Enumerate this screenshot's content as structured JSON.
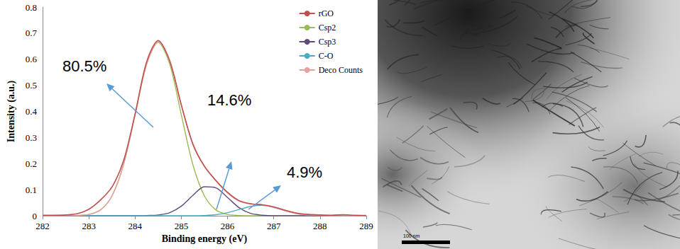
{
  "chart_data": {
    "type": "line",
    "x_label": "Binding energy (eV)",
    "y_label": "Intensity (a.u.)",
    "x": [
      282,
      282.25,
      282.5,
      282.75,
      283,
      283.25,
      283.5,
      283.75,
      284,
      284.25,
      284.5,
      284.75,
      285,
      285.25,
      285.5,
      285.75,
      286,
      286.25,
      286.5,
      286.75,
      287,
      287.25,
      287.5,
      287.75,
      288,
      288.25,
      288.5,
      288.75,
      289
    ],
    "series": [
      {
        "name": "rGO",
        "color": "#c0504d",
        "values": [
          0.002,
          0.002,
          0.003,
          0.008,
          0.025,
          0.06,
          0.11,
          0.21,
          0.39,
          0.59,
          0.672,
          0.594,
          0.425,
          0.275,
          0.19,
          0.135,
          0.09,
          0.058,
          0.046,
          0.042,
          0.034,
          0.021,
          0.01,
          0.005,
          0.003,
          0.002,
          0.004,
          0.002,
          0.001
        ]
      },
      {
        "name": "Csp2",
        "color": "#9bbb59",
        "values": [
          0,
          0,
          0,
          0.001,
          0.005,
          0.022,
          0.076,
          0.196,
          0.387,
          0.581,
          0.665,
          0.581,
          0.387,
          0.196,
          0.076,
          0.022,
          0.005,
          0.001,
          0,
          0,
          0,
          0,
          0,
          0,
          0,
          0,
          0,
          0,
          0
        ]
      },
      {
        "name": "Csp3",
        "color": "#604a7b",
        "values": [
          0,
          0,
          0,
          0,
          0,
          0,
          0,
          0,
          0,
          0.001,
          0.003,
          0.012,
          0.037,
          0.078,
          0.111,
          0.107,
          0.07,
          0.031,
          0.009,
          0.002,
          0,
          0,
          0,
          0,
          0,
          0,
          0,
          0,
          0
        ]
      },
      {
        "name": "C-O",
        "color": "#4bacc6",
        "values": [
          0,
          0,
          0,
          0,
          0,
          0,
          0,
          0,
          0,
          0,
          0,
          0,
          0,
          0,
          0.001,
          0.004,
          0.012,
          0.024,
          0.036,
          0.04,
          0.032,
          0.019,
          0.008,
          0.003,
          0.001,
          0,
          0,
          0,
          0
        ]
      },
      {
        "name": "Deco Counts",
        "color": "#e6a0a0",
        "values": [
          0,
          0,
          0,
          0.001,
          0.005,
          0.022,
          0.076,
          0.196,
          0.387,
          0.582,
          0.668,
          0.593,
          0.424,
          0.274,
          0.188,
          0.133,
          0.087,
          0.056,
          0.045,
          0.042,
          0.032,
          0.019,
          0.008,
          0.003,
          0.001,
          0,
          0,
          0,
          0
        ]
      }
    ],
    "xlim": [
      282,
      289
    ],
    "xticks": [
      282,
      283,
      284,
      285,
      286,
      287,
      288,
      289
    ],
    "ylim": [
      0,
      0.8
    ],
    "yticks": [
      0,
      0.1,
      0.2,
      0.3,
      0.4,
      0.5,
      0.6,
      0.7,
      0.8
    ],
    "grid": false,
    "legend": "upper right",
    "annotations": [
      "80.5%",
      "14.6%",
      "4.9%"
    ]
  },
  "image": {
    "scale_bar": "100 nm"
  }
}
